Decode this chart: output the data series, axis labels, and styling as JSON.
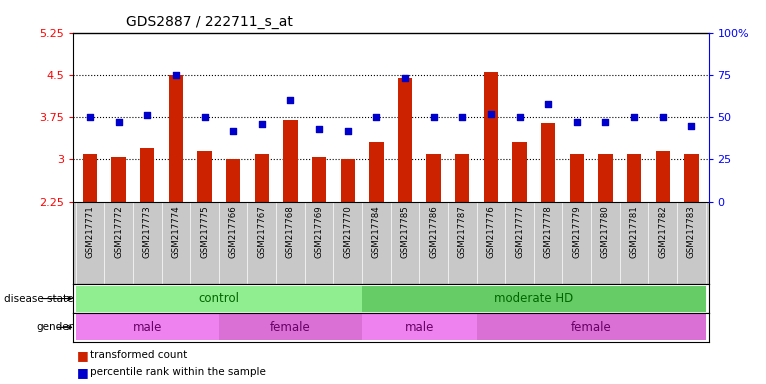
{
  "title": "GDS2887 / 222711_s_at",
  "samples": [
    "GSM217771",
    "GSM217772",
    "GSM217773",
    "GSM217774",
    "GSM217775",
    "GSM217766",
    "GSM217767",
    "GSM217768",
    "GSM217769",
    "GSM217770",
    "GSM217784",
    "GSM217785",
    "GSM217786",
    "GSM217787",
    "GSM217776",
    "GSM217777",
    "GSM217778",
    "GSM217779",
    "GSM217780",
    "GSM217781",
    "GSM217782",
    "GSM217783"
  ],
  "transformed_count": [
    3.1,
    3.05,
    3.2,
    4.5,
    3.15,
    3.0,
    3.1,
    3.7,
    3.05,
    3.0,
    3.3,
    4.45,
    3.1,
    3.1,
    4.55,
    3.3,
    3.65,
    3.1,
    3.1,
    3.1,
    3.15,
    3.1
  ],
  "percentile_rank": [
    50,
    47,
    51,
    75,
    50,
    42,
    46,
    60,
    43,
    42,
    50,
    73,
    50,
    50,
    52,
    50,
    58,
    47,
    47,
    50,
    50,
    45
  ],
  "ylim_left": [
    2.25,
    5.25
  ],
  "ylim_right": [
    0,
    100
  ],
  "yticks_left": [
    2.25,
    3.0,
    3.75,
    4.5,
    5.25
  ],
  "ytick_labels_left": [
    "2.25",
    "3",
    "3.75",
    "4.5",
    "5.25"
  ],
  "ytick_labels_right": [
    "0",
    "25",
    "50",
    "75",
    "100%"
  ],
  "hlines": [
    3.0,
    3.75,
    4.5
  ],
  "disease_state_groups": [
    {
      "label": "control",
      "start": 0,
      "end": 10,
      "color": "#90EE90"
    },
    {
      "label": "moderate HD",
      "start": 10,
      "end": 22,
      "color": "#66CC66"
    }
  ],
  "gender_groups": [
    {
      "label": "male",
      "start": 0,
      "end": 5,
      "color": "#EE82EE"
    },
    {
      "label": "female",
      "start": 5,
      "end": 10,
      "color": "#DA70D6"
    },
    {
      "label": "male",
      "start": 10,
      "end": 14,
      "color": "#EE82EE"
    },
    {
      "label": "female",
      "start": 14,
      "end": 22,
      "color": "#DA70D6"
    }
  ],
  "bar_color": "#CC2200",
  "dot_color": "#0000CC",
  "bar_width": 0.5,
  "background_color": "#FFFFFF",
  "plot_bg_color": "#FFFFFF",
  "xlabels_bg_color": "#C8C8C8"
}
